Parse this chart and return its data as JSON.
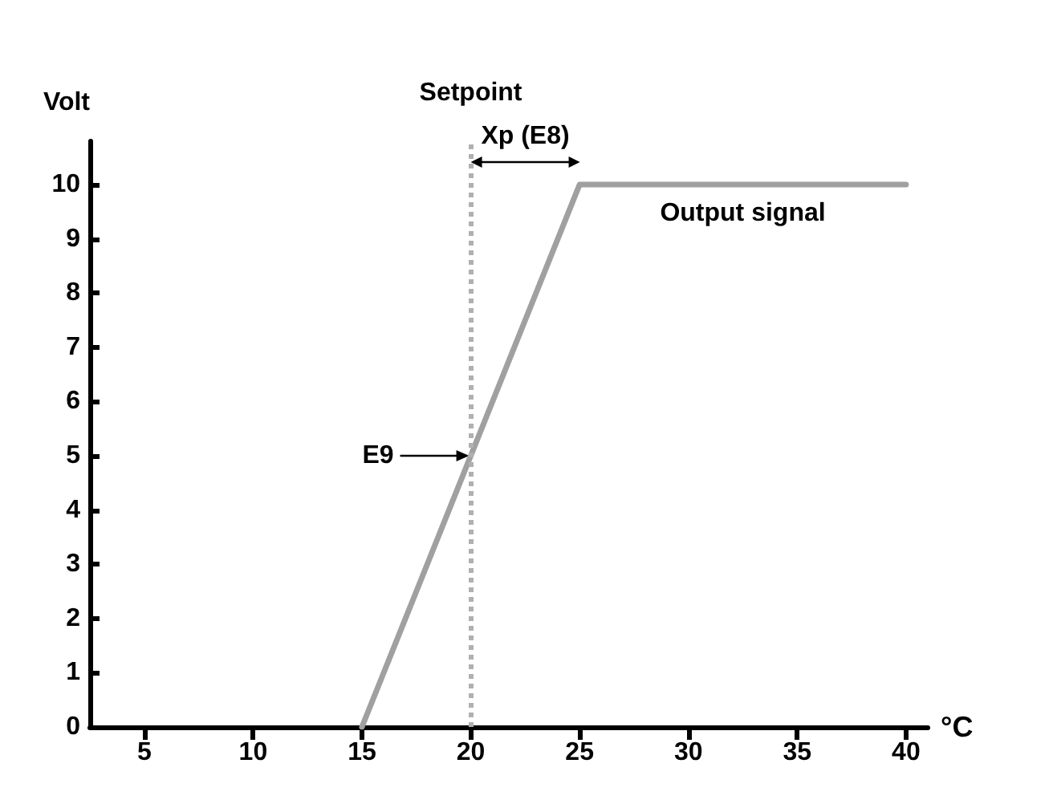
{
  "chart_data": {
    "type": "line",
    "xlabel": "°C",
    "ylabel": "Volt",
    "x": [
      15,
      25,
      40
    ],
    "series": [
      {
        "name": "Output signal",
        "color": "#a0a0a0",
        "values": [
          0,
          10,
          10
        ]
      }
    ],
    "xlim": [
      2.5,
      41
    ],
    "ylim": [
      0,
      10.8
    ],
    "xticks": [
      5,
      10,
      15,
      20,
      25,
      30,
      35,
      40
    ],
    "yticks": [
      0,
      1,
      2,
      3,
      4,
      5,
      6,
      7,
      8,
      9,
      10
    ],
    "ref_lines": [
      {
        "axis": "x",
        "value": 20,
        "label": "Setpoint",
        "color": "#b0b0b0",
        "line_style": "dotted"
      }
    ],
    "annotations": [
      "Xp (E8)",
      {
        "text": "E9",
        "x": 20,
        "y": 5
      }
    ],
    "grid": false,
    "legend": false,
    "marker": "none",
    "line_style": "solid"
  }
}
